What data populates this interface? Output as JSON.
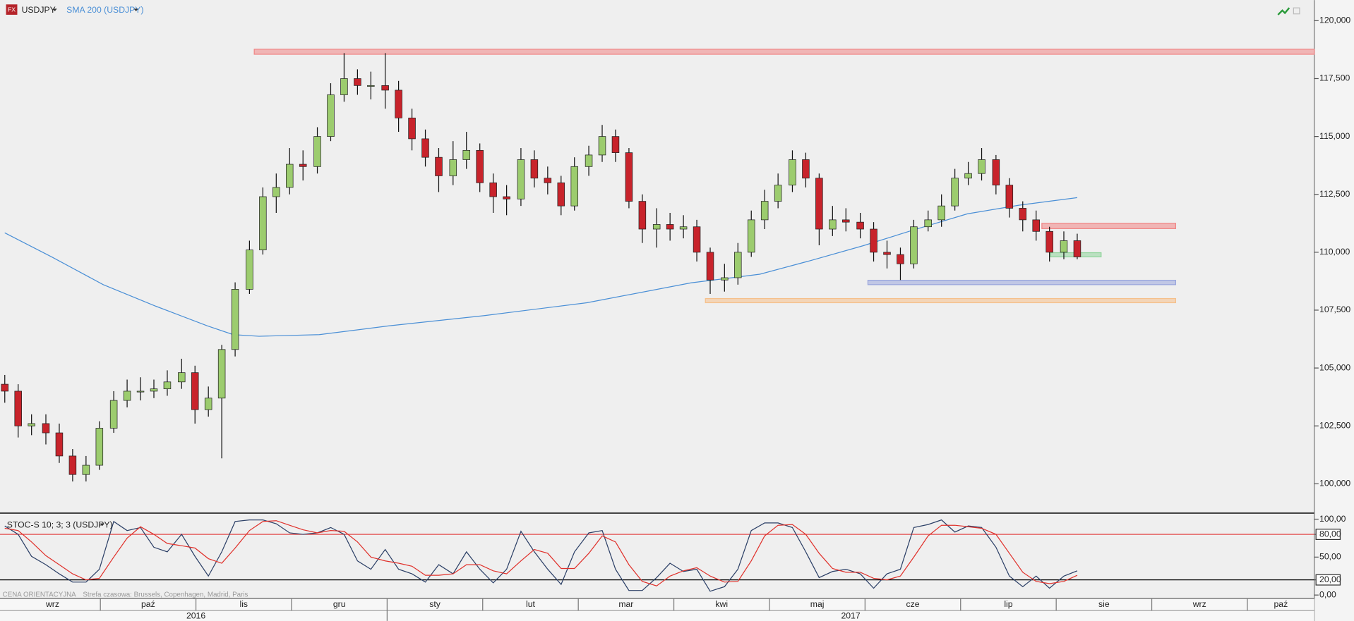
{
  "chart_data": [
    {
      "type": "candlestick",
      "title": "USDJPY",
      "source_badge": "FX",
      "x": [
        0,
        0.14,
        0.28,
        0.43,
        0.57,
        0.71,
        0.85,
        0.99,
        1.14,
        1.28,
        1.42,
        1.56,
        1.7,
        1.85,
        1.99,
        2.13,
        2.27,
        2.41,
        2.56,
        2.7,
        2.84,
        2.98,
        3.12,
        3.27,
        3.41,
        3.55,
        3.69,
        3.83,
        3.98,
        4.12,
        4.26,
        4.4,
        4.54,
        4.69,
        4.83,
        4.97,
        5.11,
        5.25,
        5.4,
        5.54,
        5.68,
        5.82,
        5.96,
        6.11,
        6.25,
        6.39,
        6.53,
        6.67,
        6.82,
        6.96,
        7.1,
        7.24,
        7.38,
        7.53,
        7.67,
        7.81,
        7.95,
        8.09,
        8.24,
        8.38,
        8.52,
        8.66,
        8.8,
        8.95,
        9.09,
        9.23,
        9.37,
        9.51,
        9.66,
        9.8,
        9.94,
        10.08,
        10.22,
        10.37,
        10.51,
        10.65,
        10.79,
        10.93,
        11.08,
        11.22
      ],
      "open": [
        104.3,
        104.0,
        102.5,
        102.6,
        102.2,
        101.2,
        100.4,
        100.8,
        102.4,
        103.6,
        104.0,
        104.0,
        104.1,
        104.4,
        104.8,
        103.2,
        103.7,
        105.8,
        108.4,
        110.1,
        112.4,
        112.8,
        113.8,
        113.7,
        115.0,
        116.8,
        117.5,
        117.2,
        117.2,
        117.0,
        115.8,
        114.9,
        114.1,
        113.3,
        114.0,
        114.4,
        113.0,
        112.4,
        112.3,
        114.0,
        113.2,
        113.0,
        112.0,
        113.7,
        114.2,
        115.0,
        114.3,
        112.2,
        111.0,
        111.2,
        111.0,
        111.1,
        110.0,
        108.8,
        108.9,
        110.0,
        111.4,
        112.2,
        112.9,
        114.0,
        113.2,
        111.0,
        111.4,
        111.3,
        111.0,
        110.0,
        109.9,
        109.5,
        111.1,
        111.4,
        112.0,
        113.2,
        113.4,
        114.0,
        112.9,
        111.9,
        111.4,
        110.9,
        110.0,
        110.5
      ],
      "high": [
        104.7,
        104.3,
        103.0,
        103.0,
        102.6,
        101.5,
        101.2,
        102.7,
        104.0,
        104.5,
        104.6,
        104.5,
        104.9,
        105.4,
        105.1,
        104.2,
        106.0,
        108.7,
        110.5,
        112.8,
        113.4,
        114.5,
        114.4,
        115.4,
        117.3,
        118.6,
        117.9,
        117.8,
        118.6,
        117.4,
        116.2,
        115.3,
        114.5,
        114.8,
        115.2,
        114.7,
        113.4,
        112.9,
        114.5,
        114.4,
        113.7,
        113.3,
        114.1,
        114.6,
        115.5,
        115.3,
        114.5,
        112.5,
        111.9,
        111.7,
        111.6,
        111.4,
        110.2,
        109.5,
        110.4,
        111.8,
        112.7,
        113.4,
        114.4,
        114.3,
        113.4,
        112.0,
        111.9,
        111.7,
        111.3,
        110.5,
        110.2,
        111.4,
        111.8,
        112.5,
        113.6,
        113.9,
        114.5,
        114.2,
        113.2,
        112.2,
        111.8,
        111.1,
        110.9,
        110.8
      ],
      "low": [
        103.5,
        102.0,
        102.1,
        101.7,
        100.9,
        100.1,
        100.1,
        100.6,
        102.2,
        103.3,
        103.6,
        103.7,
        103.8,
        104.1,
        102.6,
        102.9,
        101.1,
        105.5,
        108.2,
        109.9,
        111.7,
        112.5,
        113.1,
        113.4,
        114.8,
        116.5,
        116.8,
        116.6,
        116.2,
        115.2,
        114.4,
        113.7,
        112.6,
        112.9,
        113.6,
        112.6,
        111.7,
        111.6,
        112.0,
        112.8,
        112.5,
        111.6,
        111.8,
        113.3,
        113.9,
        113.9,
        111.9,
        110.4,
        110.2,
        110.5,
        110.6,
        109.6,
        108.2,
        108.3,
        108.6,
        109.8,
        111.0,
        111.9,
        112.6,
        112.8,
        110.3,
        110.7,
        110.9,
        110.6,
        109.6,
        109.3,
        108.8,
        109.3,
        110.9,
        111.1,
        111.8,
        112.9,
        113.1,
        112.5,
        111.5,
        110.9,
        110.5,
        109.6,
        109.7,
        109.7
      ],
      "close": [
        104.0,
        102.5,
        102.6,
        102.2,
        101.2,
        100.4,
        100.8,
        102.4,
        103.6,
        104.0,
        104.0,
        104.1,
        104.4,
        104.8,
        103.2,
        103.7,
        105.8,
        108.4,
        110.1,
        112.4,
        112.8,
        113.8,
        113.7,
        115.0,
        116.8,
        117.5,
        117.2,
        117.2,
        117.0,
        115.8,
        114.9,
        114.1,
        113.3,
        114.0,
        114.4,
        113.0,
        112.4,
        112.3,
        114.0,
        113.2,
        113.0,
        112.0,
        113.7,
        114.2,
        115.0,
        114.3,
        112.2,
        111.0,
        111.2,
        111.0,
        111.1,
        110.0,
        108.8,
        108.9,
        110.0,
        111.4,
        112.2,
        112.9,
        114.0,
        113.2,
        111.0,
        111.4,
        111.3,
        111.0,
        110.0,
        109.9,
        109.5,
        111.1,
        111.4,
        112.0,
        113.2,
        113.4,
        114.0,
        112.9,
        111.9,
        111.4,
        110.9,
        110.0,
        110.5,
        109.8
      ],
      "up_color": "#9ccc6e",
      "down_color": "#c8232b",
      "xlim": [
        -0.05,
        13.7
      ],
      "ylim": [
        98.77,
        120.89
      ],
      "yticks": [
        {
          "value": 100,
          "label": "100,000"
        },
        {
          "value": 102.5,
          "label": "102,500"
        },
        {
          "value": 105,
          "label": "105,000"
        },
        {
          "value": 107.5,
          "label": "107,500"
        },
        {
          "value": 110,
          "label": "110,000"
        },
        {
          "value": 112.5,
          "label": "112,500"
        },
        {
          "value": 115,
          "label": "115,000"
        },
        {
          "value": 117.5,
          "label": "117,500"
        },
        {
          "value": 120,
          "label": "120,000"
        }
      ],
      "overlays": [
        {
          "name": "SMA 200 (USDJPY)",
          "color": "#4a8fd6",
          "x": [
            0,
            0.49,
            1.03,
            1.58,
            2.12,
            2.39,
            2.66,
            3.29,
            4.02,
            5.01,
            6.09,
            7.18,
            7.9,
            8.44,
            8.98,
            9.53,
            10.07,
            10.61,
            11.22
          ],
          "values": [
            110.84,
            109.8,
            108.6,
            107.67,
            106.82,
            106.44,
            106.37,
            106.44,
            106.82,
            107.26,
            107.82,
            108.68,
            109.05,
            109.65,
            110.28,
            110.99,
            111.66,
            112.03,
            112.36
          ]
        }
      ],
      "zones": [
        {
          "color": "#f08585",
          "from": 2.61,
          "to": 13.7,
          "low": 118.55,
          "high": 118.77
        },
        {
          "color": "#f08585",
          "from": 10.85,
          "to": 12.25,
          "low": 111.02,
          "high": 111.25
        },
        {
          "color": "#8fd39a",
          "from": 10.94,
          "to": 11.47,
          "low": 109.8,
          "high": 109.98
        },
        {
          "color": "#9aa6dd",
          "from": 9.03,
          "to": 12.25,
          "low": 108.6,
          "high": 108.79
        },
        {
          "color": "#f5c08a",
          "from": 7.33,
          "to": 12.25,
          "low": 107.82,
          "high": 108.0
        }
      ]
    },
    {
      "type": "line",
      "title": "STOC-S 10; 3; 3 (USDJPY)",
      "x": [
        0,
        0.14,
        0.28,
        0.43,
        0.57,
        0.71,
        0.85,
        0.99,
        1.14,
        1.28,
        1.42,
        1.56,
        1.7,
        1.85,
        1.99,
        2.13,
        2.27,
        2.41,
        2.56,
        2.7,
        2.84,
        2.98,
        3.12,
        3.27,
        3.41,
        3.55,
        3.69,
        3.83,
        3.98,
        4.12,
        4.26,
        4.4,
        4.54,
        4.69,
        4.83,
        4.97,
        5.11,
        5.25,
        5.4,
        5.54,
        5.68,
        5.82,
        5.96,
        6.11,
        6.25,
        6.39,
        6.53,
        6.67,
        6.82,
        6.96,
        7.1,
        7.24,
        7.38,
        7.53,
        7.67,
        7.81,
        7.95,
        8.09,
        8.24,
        8.38,
        8.52,
        8.66,
        8.8,
        8.95,
        9.09,
        9.23,
        9.37,
        9.51,
        9.66,
        9.8,
        9.94,
        10.08,
        10.22,
        10.37,
        10.51,
        10.65,
        10.79,
        10.93,
        11.08,
        11.22
      ],
      "series": [
        {
          "color": "#2b3f66",
          "values": [
            91,
            80,
            51,
            40,
            28,
            17,
            17,
            34,
            97,
            85,
            89,
            63,
            57,
            80,
            51,
            25,
            57,
            97,
            99,
            99,
            94,
            82,
            80,
            82,
            89,
            80,
            45,
            34,
            60,
            34,
            28,
            17,
            40,
            28,
            57,
            34,
            16,
            34,
            84,
            57,
            34,
            14,
            57,
            82,
            85,
            34,
            6,
            6,
            23,
            42,
            31,
            34,
            5,
            11,
            34,
            85,
            95,
            95,
            89,
            57,
            23,
            31,
            34,
            28,
            9,
            28,
            34,
            89,
            93,
            99,
            83,
            91,
            89,
            63,
            25,
            11,
            25,
            9,
            25,
            32
          ]
        },
        {
          "color": "#e0302a",
          "values": [
            88,
            85,
            70,
            52,
            40,
            28,
            20,
            22,
            50,
            75,
            90,
            80,
            68,
            65,
            62,
            48,
            42,
            62,
            85,
            97,
            98,
            92,
            86,
            82,
            85,
            84,
            70,
            50,
            45,
            42,
            38,
            26,
            26,
            28,
            40,
            40,
            32,
            28,
            45,
            60,
            55,
            35,
            35,
            55,
            78,
            70,
            40,
            18,
            12,
            25,
            32,
            36,
            25,
            17,
            18,
            45,
            78,
            92,
            93,
            80,
            55,
            35,
            30,
            30,
            22,
            20,
            25,
            50,
            78,
            92,
            92,
            90,
            88,
            80,
            55,
            30,
            18,
            15,
            18,
            26
          ]
        }
      ],
      "xlim": [
        -0.05,
        13.7
      ],
      "ylim": [
        -3.4,
        105.7
      ],
      "yticks": [
        {
          "value": 0,
          "label": "0,00"
        },
        {
          "value": 20,
          "label": "20,00"
        },
        {
          "value": 50,
          "label": "50,00"
        },
        {
          "value": 80,
          "label": "80,00"
        },
        {
          "value": 100,
          "label": "100,00"
        }
      ],
      "levels": [
        {
          "value": 80,
          "color": "#e03030"
        },
        {
          "value": 20,
          "color": "#000000"
        }
      ],
      "xticks": [
        {
          "value": 0,
          "label": "wrz"
        },
        {
          "value": 1,
          "label": "paź"
        },
        {
          "value": 2,
          "label": "lis"
        },
        {
          "value": 3,
          "label": "gru"
        },
        {
          "value": 4,
          "label": "sty"
        },
        {
          "value": 5,
          "label": "lut"
        },
        {
          "value": 6,
          "label": "mar"
        },
        {
          "value": 7,
          "label": "kwi"
        },
        {
          "value": 8,
          "label": "maj"
        },
        {
          "value": 9,
          "label": "cze"
        },
        {
          "value": 10,
          "label": "lip"
        },
        {
          "value": 11,
          "label": "sie"
        },
        {
          "value": 12,
          "label": "wrz"
        },
        {
          "value": 13,
          "label": "paź"
        }
      ],
      "periods": [
        {
          "value": 0,
          "label": "2016"
        },
        {
          "value": 4,
          "label": "2017"
        }
      ],
      "footer": "CENA ORIENTACYJNA",
      "timezone": "Strefa czasowa: Brussels, Copenhagen, Madrid, Paris"
    }
  ]
}
